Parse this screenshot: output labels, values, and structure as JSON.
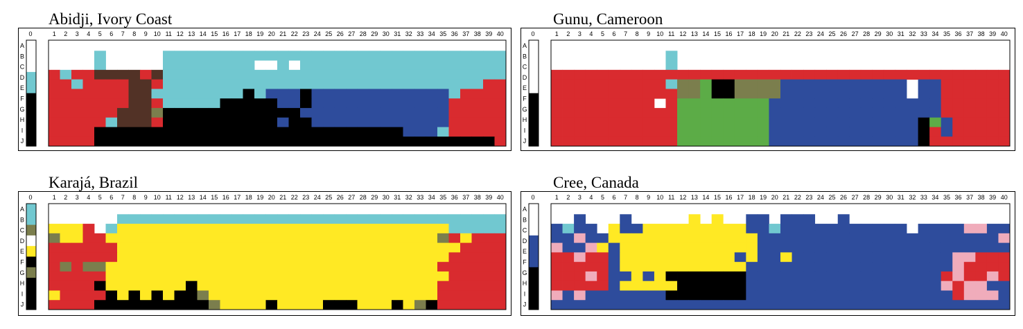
{
  "colors": {
    "R": "#d92b2f",
    "C": "#71c8d0",
    "K": "#000000",
    "N": "#2e4c9c",
    "B": "#523226",
    "O": "#7b7e4d",
    "G": "#5cac47",
    "Y": "#ffe924",
    "P": "#f0acbb",
    "W": "#ffffff"
  },
  "row_letters": [
    "A",
    "B",
    "C",
    "D",
    "E",
    "F",
    "G",
    "H",
    "I",
    "J"
  ],
  "column_numbers": [
    "1",
    "2",
    "3",
    "4",
    "5",
    "6",
    "7",
    "8",
    "9",
    "10",
    "11",
    "12",
    "13",
    "14",
    "15",
    "16",
    "17",
    "18",
    "19",
    "20",
    "21",
    "22",
    "23",
    "24",
    "25",
    "26",
    "27",
    "28",
    "29",
    "30",
    "31",
    "32",
    "33",
    "34",
    "35",
    "36",
    "37",
    "38",
    "39",
    "40"
  ],
  "zero_label": "0",
  "panels": [
    {
      "title": "Abidji, Ivory Coast",
      "key": [
        "W",
        "W",
        "W",
        "C",
        "C",
        "K",
        "K",
        "K",
        "K",
        "K"
      ],
      "grid": [
        "WWWWCWWWWWCCCCCCCCCCCCCCCCCCCCCCCCCCCCCC",
        "WWWWCWWWWWCCCCCCCCWWCWCCCCCCCCCCCCCCCCCC",
        "RCRRBBBBRBCCCCCCCCCCCCCCCCCCCCCCCCCCCCCC",
        "RRCRRRRBBRCCCCCCCCCCCCCCCCCCCCCCCCCCCCRR",
        "RRRRRRRBBCCCCCCCCKCNNNKNNNNNNNNNNNNCRRRR",
        "RRRRRRRBBRCCCCCKKKKKNNKNNNNNNNNNNNNRRRRR",
        "RRRRRRBBBOKKKKKKKKKKKKNNNNNNNNNNNNNRRRRR",
        "RRRRRCBBBRKKKKKKKKKKNKKNNNNNNNNNNNNRRRRR",
        "RRRRKKKKKKKKKKKKKKKKKKKKKKKKKKKNNNCRRRRR",
        "RRRRKKKKKKKKKKKKKKKKKKKKKKKKKKKKKKKKKKKR"
      ]
    },
    {
      "title": "Gunu, Cameroon",
      "key": [
        "W",
        "W",
        "W",
        "W",
        "W",
        "K",
        "K",
        "K",
        "K",
        "K"
      ],
      "grid": [
        "WWWWWWWWWWCWWWWWWWWWWWWWWWWWWWWWWWWWWWWW",
        "WWWWWWWWWWCWWWWWWWWWWWWWWWWWWWWWWWWWWWWW",
        "RRRRRRRRRRRRRRRRRRRRRRRRRRRRRRRRRRRRRRRR",
        "RRRRRRRRRRCOOGKKOOOONNNNNNNNNNNWNNRRRRRR",
        "RRRRRRRRRRROOGKKOOOONNNNNNNNNNNWNNRRRRRR",
        "RRRRRRRRRWRGGGGGGGGNNNNNNNNNNNNNNNRRRRRR",
        "RRRRRRRRRRRGGGGGGGGNNNNNNNNNNNNNNNRRRRRR",
        "RRRRRRRRRRRGGGGGGGGNNNNNNNNNNNNNKGNRRRRR",
        "RRRRRRRRRRRGGGGGGGGNNNNNNNNNNNNNKRNRRRRR",
        "RRRRRRRRRRRGGGGGGGGNNNNNNNNNNNNNKRRRRRRR"
      ]
    },
    {
      "title": "Karajá, Brazil",
      "key": [
        "C",
        "C",
        "O",
        "W",
        "Y",
        "K",
        "O",
        "K",
        "K",
        "K"
      ],
      "grid": [
        "WWWWWWCCCCCCCCCCCCCCCCCCCCCCCCCCCCCCCCCC",
        "YYYRWCYYYYYYYYYYYYYYYYYYYYYYYYYYYYYCCCCC",
        "OYYRRYYYYYYYYYYYYYYYYYYYYYYYYYYYYYORYRRR",
        "RRRRRRYYYYYYYYYYYYYYYYYYYYYYYYYYYYYYRRRR",
        "RRRRRRYYYYYYYYYYYYYYYYYYYYYYYYYYYYYRRRRR",
        "ROROOYYYYYYYYYYYYYYYYYYYYYYYYYYYYYRRRRRR",
        "RRRRRYYYYYYYYYYYYYYYYYYYYYYYYYYYYYYRRRRR",
        "RRRRKYYYYYYYKYYYYYYYYYYYYYYYYYYYYYRRRRRR",
        "YRRRRKYKYKYKKOYYYYYYYYYYYYYYYYYYYYRRRRRR",
        "RRRRKKKKKKKKKKOYYYYKYYYYKKKYYYKYOKRRRRRR"
      ]
    },
    {
      "title": "Cree, Canada",
      "key": [
        "W",
        "W",
        "W",
        "N",
        "N",
        "N",
        "K",
        "K",
        "K",
        "K"
      ],
      "grid": [
        "WWNWWWNWWWWWYWYWWNNWNNNWWNWWWWWWWWWWWWWW",
        "NCNNWYNNYYYYYYYYYNNCNNNNNNNNNNNWNNNNPPNN",
        "NNPNNYYYYYYYYYYYYYNNNNNNNNNNNNNNNNNNNNNP",
        "PNNPYNYYYYYYYYYYYYNNNNNNNNNNNNNNNNNNNNNN",
        "RRPRRNYYYYYYYYYYNYNNYNNNNNNNNNNNNNNPPRRR",
        "RRRRRNYYYYYYYYYYYNNNNNNNNNNNNNNNNNNPRRRR",
        "RRRPRNNYNYKKKKKKKNNNNNNNNNNNNNNNNNRPRRPR",
        "RRRRRNYYYYYKKKKKKNNNNNNNNNNNNNNNNNPRPPNN",
        "PNPNNNNNNNKKKKKKKNNNNNNNNNNNNNNNNNNRPPPN",
        "NNNNNNNNNNNNNNNNNNNNNNNNNNNNNNNNNNNNNNNN"
      ]
    }
  ]
}
